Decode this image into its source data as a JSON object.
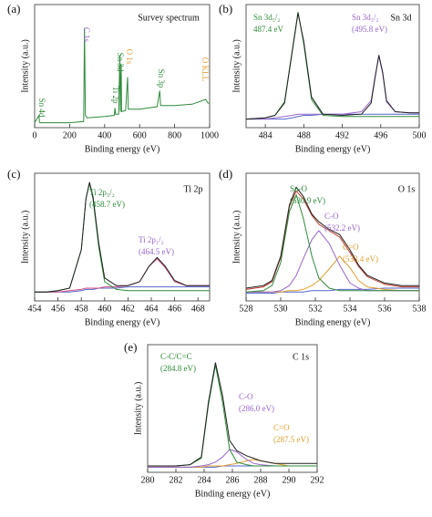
{
  "chart_data": [
    {
      "type": "line",
      "label": "(a)",
      "title": "Survey spectrum",
      "x_label": "Binding energy (eV)",
      "y_label": "Intensity (a.u.)",
      "xlim": [
        0,
        1000
      ],
      "xticks": [
        0,
        200,
        400,
        600,
        800,
        1000
      ],
      "ylim": [
        0,
        100
      ],
      "x": [
        0,
        25,
        27,
        30,
        100,
        200,
        280,
        285,
        290,
        300,
        400,
        455,
        459,
        463,
        480,
        487,
        490,
        495,
        497,
        520,
        531,
        535,
        600,
        700,
        715,
        720,
        800,
        900,
        978,
        990,
        1000
      ],
      "series": [
        {
          "color": "#2e8b3a",
          "values": [
            4,
            10,
            5,
            4,
            4,
            4,
            5,
            81,
            10,
            8,
            9,
            10,
            16,
            11,
            11,
            59,
            13,
            52,
            13,
            14,
            41,
            15,
            15,
            17,
            30,
            18,
            18,
            19,
            23,
            20,
            20
          ]
        }
      ],
      "annotations": [
        {
          "text": "Sn 4d",
          "color": "#2e8b3a"
        },
        {
          "text": "C 1s",
          "color": "#9966cc"
        },
        {
          "text": "Ti 2p",
          "color": "#2e8b3a"
        },
        {
          "text": "Sn 3d",
          "color": "#2e8b3a"
        },
        {
          "text": "O 1s",
          "color": "#e0a030"
        },
        {
          "text": "Sn 3p",
          "color": "#2e8b3a"
        },
        {
          "text": "O KLL",
          "color": "#e0a030"
        }
      ]
    },
    {
      "type": "line",
      "label": "(b)",
      "title": "Sn 3d",
      "x_label": "Binding energy (eV)",
      "y_label": "Intensity (a.u.)",
      "xlim": [
        482,
        500
      ],
      "xticks": [
        484,
        488,
        492,
        496,
        500
      ],
      "ylim": [
        0,
        100
      ],
      "x": [
        482,
        484,
        485,
        486,
        486.8,
        487.4,
        488,
        488.8,
        490,
        492,
        494,
        495,
        495.4,
        495.8,
        496.2,
        496.6,
        497.5,
        499,
        500
      ],
      "series": [
        {
          "color": "#5566cc",
          "values": [
            7,
            7,
            7,
            7,
            8,
            9,
            10,
            10,
            11,
            11,
            11,
            11,
            11,
            11,
            11,
            11,
            11,
            11,
            11
          ]
        },
        {
          "color": "#9966cc",
          "values": [
            7,
            7,
            8,
            9,
            10,
            11,
            11,
            11,
            11,
            11,
            13,
            22,
            41,
            58,
            44,
            21,
            13,
            12,
            12
          ]
        },
        {
          "color": "#2e8b3a",
          "values": [
            7,
            8,
            10,
            21,
            63,
            94,
            68,
            23,
            10,
            9,
            9,
            9,
            9,
            9,
            9,
            9,
            9,
            9,
            9
          ]
        },
        {
          "color": "#222222",
          "values": [
            7,
            8,
            10,
            20,
            62,
            93,
            70,
            25,
            11,
            10,
            11,
            20,
            40,
            59,
            45,
            22,
            13,
            12,
            12
          ]
        }
      ],
      "annotations": [
        {
          "text": "Sn 3d₅/₂",
          "color": "#2e8b3a"
        },
        {
          "text": "487.4 eV",
          "color": "#2e8b3a"
        },
        {
          "text": "Sn 3d₃/₂",
          "color": "#9966cc"
        },
        {
          "text": "(495.8 eV)",
          "color": "#9966cc"
        }
      ]
    },
    {
      "type": "line",
      "label": "(c)",
      "title": "Ti 2p",
      "x_label": "Binding energy (eV)",
      "y_label": "Intensity (a.u.)",
      "xlim": [
        454,
        469
      ],
      "xticks": [
        454,
        456,
        458,
        460,
        462,
        464,
        466,
        468
      ],
      "ylim": [
        0,
        100
      ],
      "x": [
        454,
        455,
        456,
        457,
        458,
        458.4,
        458.7,
        459,
        459.5,
        460,
        461,
        462,
        463,
        463.8,
        464.5,
        465.2,
        466,
        467,
        468,
        469
      ],
      "series": [
        {
          "color": "#5566cc",
          "values": [
            7,
            7,
            7,
            7,
            8,
            9,
            9,
            9,
            10,
            10,
            10,
            11,
            11,
            11,
            11,
            11,
            11,
            11,
            11,
            11
          ]
        },
        {
          "color": "#d0508a",
          "values": [
            7,
            7,
            7,
            8,
            9,
            10,
            10,
            10,
            10,
            11,
            11,
            12,
            15,
            27,
            33,
            26,
            15,
            12,
            12,
            12
          ]
        },
        {
          "color": "#2e8b3a",
          "values": [
            7,
            7,
            8,
            10,
            40,
            80,
            92,
            80,
            42,
            15,
            9,
            8,
            8,
            8,
            8,
            8,
            8,
            8,
            8,
            8
          ]
        },
        {
          "color": "#222222",
          "values": [
            7,
            7,
            8,
            10,
            40,
            80,
            93,
            82,
            45,
            18,
            12,
            12,
            15,
            27,
            34,
            27,
            16,
            12,
            12,
            12
          ]
        }
      ],
      "annotations": [
        {
          "text": "Ti 2p₃/₂",
          "color": "#2e8b3a"
        },
        {
          "text": "(458.7 eV)",
          "color": "#2e8b3a"
        },
        {
          "text": "Ti 2p₁/₂",
          "color": "#9966cc"
        },
        {
          "text": "(464.5 eV)",
          "color": "#9966cc"
        }
      ]
    },
    {
      "type": "line",
      "label": "(d)",
      "title": "O 1s",
      "x_label": "Binding energy (eV)",
      "y_label": "Intensity (a.u.)",
      "xlim": [
        528,
        538
      ],
      "xticks": [
        528,
        530,
        532,
        534,
        536,
        538
      ],
      "ylim": [
        0,
        100
      ],
      "x": [
        528,
        529,
        529.5,
        530,
        530.5,
        530.9,
        531.3,
        531.8,
        532.2,
        532.8,
        533.4,
        534,
        534.5,
        535,
        536,
        537,
        538
      ],
      "series": [
        {
          "color": "#5566cc",
          "values": [
            6,
            6,
            6,
            7,
            7,
            7,
            7,
            8,
            8,
            8,
            9,
            9,
            9,
            9,
            10,
            10,
            10
          ]
        },
        {
          "color": "#e0a030",
          "values": [
            7,
            7,
            7,
            7,
            8,
            8,
            9,
            12,
            16,
            25,
            35,
            26,
            16,
            11,
            9,
            8,
            8
          ]
        },
        {
          "color": "#9966cc",
          "values": [
            7,
            7,
            7,
            8,
            12,
            20,
            33,
            48,
            55,
            45,
            28,
            14,
            10,
            8,
            8,
            8,
            8
          ]
        },
        {
          "color": "#2e8b3a",
          "values": [
            7,
            8,
            12,
            30,
            70,
            83,
            65,
            35,
            18,
            10,
            8,
            8,
            8,
            8,
            8,
            8,
            8
          ]
        },
        {
          "color": "#c0392b",
          "values": [
            9,
            11,
            15,
            34,
            74,
            86,
            80,
            67,
            60,
            55,
            50,
            38,
            27,
            19,
            13,
            11,
            11
          ]
        },
        {
          "color": "#222222",
          "values": [
            10,
            12,
            16,
            35,
            75,
            89,
            82,
            68,
            62,
            56,
            52,
            40,
            28,
            20,
            14,
            12,
            12
          ]
        }
      ],
      "annotations": [
        {
          "text": "Sn-O",
          "color": "#2e8b3a"
        },
        {
          "text": "(530.9 eV)",
          "color": "#2e8b3a"
        },
        {
          "text": "C-O",
          "color": "#9966cc"
        },
        {
          "text": "(532.2 eV)",
          "color": "#9966cc"
        },
        {
          "text": "C=O",
          "color": "#e0a030"
        },
        {
          "text": "(533.4 eV)",
          "color": "#e0a030"
        }
      ]
    },
    {
      "type": "line",
      "label": "(e)",
      "title": "C 1s",
      "x_label": "Binding energy (eV)",
      "y_label": "Intensity (a.u.)",
      "xlim": [
        280,
        292
      ],
      "xticks": [
        280,
        282,
        284,
        286,
        288,
        290,
        292
      ],
      "ylim": [
        0,
        100
      ],
      "x": [
        280,
        282,
        283,
        283.8,
        284.3,
        284.8,
        285.3,
        285.8,
        286.3,
        287,
        287.5,
        288,
        289,
        290,
        292
      ],
      "series": [
        {
          "color": "#5566cc",
          "values": [
            4,
            4,
            4,
            4,
            4,
            4,
            5,
            5,
            5,
            5,
            5,
            5,
            5,
            5,
            5
          ]
        },
        {
          "color": "#e0a030",
          "values": [
            4,
            4,
            4,
            4,
            5,
            5,
            5,
            6,
            7,
            9,
            10,
            9,
            7,
            5,
            5
          ]
        },
        {
          "color": "#9966cc",
          "values": [
            4,
            4,
            4,
            5,
            6,
            8,
            12,
            18,
            16,
            10,
            7,
            6,
            5,
            5,
            5
          ]
        },
        {
          "color": "#2e8b3a",
          "values": [
            5,
            5,
            6,
            11,
            53,
            84,
            55,
            18,
            8,
            6,
            5,
            5,
            5,
            5,
            5
          ]
        },
        {
          "color": "#222222",
          "values": [
            5,
            5,
            6,
            12,
            55,
            86,
            60,
            25,
            17,
            13,
            11,
            9,
            7,
            7,
            7
          ]
        }
      ],
      "annotations": [
        {
          "text": "C-C/C=C",
          "color": "#2e8b3a"
        },
        {
          "text": "(284.8 eV)",
          "color": "#2e8b3a"
        },
        {
          "text": "C-O",
          "color": "#9966cc"
        },
        {
          "text": "(286.0 eV)",
          "color": "#9966cc"
        },
        {
          "text": "C=O",
          "color": "#e0a030"
        },
        {
          "text": "(287.5 eV)",
          "color": "#e0a030"
        }
      ]
    }
  ]
}
